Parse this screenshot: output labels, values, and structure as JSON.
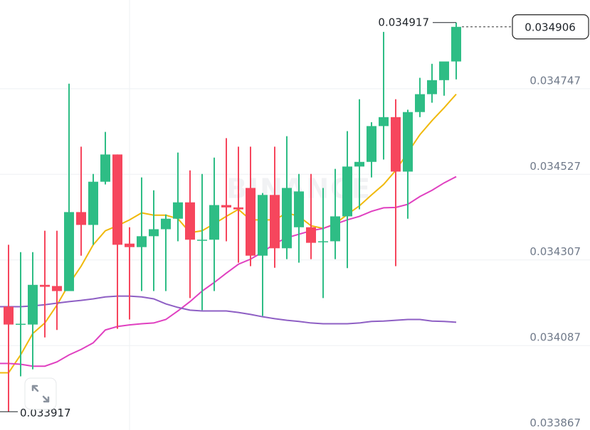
{
  "chart_data": {
    "type": "candlestick",
    "ylim": [
      0.03387,
      0.034975
    ],
    "yticks": [
      0.033867,
      0.034087,
      0.034307,
      0.034527,
      0.034747
    ],
    "grid": true,
    "up_color": "#2ebd85",
    "down_color": "#f6465d",
    "watermark": "BINANCE",
    "high_marker": 0.034917,
    "low_marker": 0.033917,
    "last_price": 0.034906,
    "open": [
      0.034187,
      0.034141,
      0.034141,
      0.034243,
      0.03424,
      0.034227,
      0.03443,
      0.034397,
      0.034508,
      0.034578,
      0.034349,
      0.03434,
      0.034368,
      0.034386,
      0.034413,
      0.034455,
      0.034357,
      0.034359,
      0.034448,
      0.034442,
      0.034492,
      0.034318,
      0.034474,
      0.034337,
      0.034391,
      0.034391,
      0.034353,
      0.034355,
      0.034419,
      0.034547,
      0.034559,
      0.034651,
      0.034674,
      0.034534,
      0.034687,
      0.034733,
      0.034769,
      0.034817
    ],
    "high": [
      0.034346,
      0.034327,
      0.034327,
      0.034382,
      0.034382,
      0.03476,
      0.034598,
      0.034528,
      0.034636,
      0.034578,
      0.034391,
      0.034519,
      0.034486,
      0.034424,
      0.034583,
      0.034537,
      0.034528,
      0.03457,
      0.03462,
      0.034598,
      0.034598,
      0.034479,
      0.034598,
      0.034625,
      0.034528,
      0.034528,
      0.034492,
      0.034541,
      0.034638,
      0.03472,
      0.034661,
      0.034893,
      0.03472,
      0.034693,
      0.034775,
      0.034811,
      0.034817,
      0.034917
    ],
    "low": [
      0.033917,
      0.034008,
      0.034026,
      0.034108,
      0.034127,
      0.034227,
      0.034318,
      0.034346,
      0.034501,
      0.03413,
      0.034154,
      0.034227,
      0.034227,
      0.034227,
      0.034355,
      0.034209,
      0.034178,
      0.034227,
      0.034355,
      0.0343,
      0.034291,
      0.034163,
      0.034287,
      0.034309,
      0.0343,
      0.034309,
      0.034209,
      0.034309,
      0.034286,
      0.034437,
      0.034519,
      0.034565,
      0.034291,
      0.034413,
      0.034674,
      0.034711,
      0.034729,
      0.034771
    ],
    "close": [
      0.034141,
      0.034143,
      0.034243,
      0.034238,
      0.034227,
      0.03443,
      0.034397,
      0.034508,
      0.034578,
      0.034346,
      0.03434,
      0.034368,
      0.034386,
      0.034413,
      0.034455,
      0.034359,
      0.034359,
      0.034448,
      0.034442,
      0.034437,
      0.034318,
      0.034474,
      0.034337,
      0.034492,
      0.034483,
      0.034351,
      0.034355,
      0.034419,
      0.034547,
      0.034559,
      0.034651,
      0.034674,
      0.034534,
      0.034687,
      0.034733,
      0.034769,
      0.034817,
      0.034906
    ],
    "overlays": [
      {
        "color": "#f0b90b",
        "values": [
          0.034017,
          0.034063,
          0.034118,
          0.034145,
          0.034191,
          0.034245,
          0.034291,
          0.034346,
          0.034382,
          0.034395,
          0.03441,
          0.034428,
          0.034422,
          0.034422,
          0.034413,
          0.034377,
          0.034382,
          0.0344,
          0.034419,
          0.034437,
          0.03441,
          0.03441,
          0.03441,
          0.034428,
          0.034419,
          0.034395,
          0.034388,
          0.0344,
          0.034424,
          0.034446,
          0.034474,
          0.034501,
          0.034537,
          0.034583,
          0.034629,
          0.034665,
          0.034698,
          0.034733
        ]
      },
      {
        "color": "#e040c0",
        "values": [
          0.034041,
          0.034039,
          0.034034,
          0.034034,
          0.034045,
          0.034063,
          0.034077,
          0.034094,
          0.034127,
          0.034136,
          0.03414,
          0.034143,
          0.034145,
          0.034154,
          0.034176,
          0.0342,
          0.034227,
          0.034249,
          0.034273,
          0.034296,
          0.034309,
          0.034327,
          0.034349,
          0.034364,
          0.034373,
          0.034382,
          0.034388,
          0.034399,
          0.03441,
          0.034419,
          0.034432,
          0.034441,
          0.034442,
          0.03445,
          0.03447,
          0.034486,
          0.034505,
          0.034521
        ]
      },
      {
        "color": "#8e5fc4",
        "values": [
          0.034187,
          0.034187,
          0.034189,
          0.034192,
          0.034196,
          0.0342,
          0.034203,
          0.034207,
          0.034212,
          0.034214,
          0.034214,
          0.034212,
          0.034207,
          0.034194,
          0.034185,
          0.034178,
          0.034176,
          0.034176,
          0.034176,
          0.034172,
          0.034167,
          0.034161,
          0.034156,
          0.034152,
          0.034149,
          0.034145,
          0.034143,
          0.034143,
          0.034143,
          0.034145,
          0.034149,
          0.03415,
          0.034152,
          0.034154,
          0.034154,
          0.03415,
          0.034149,
          0.034147
        ]
      }
    ]
  }
}
